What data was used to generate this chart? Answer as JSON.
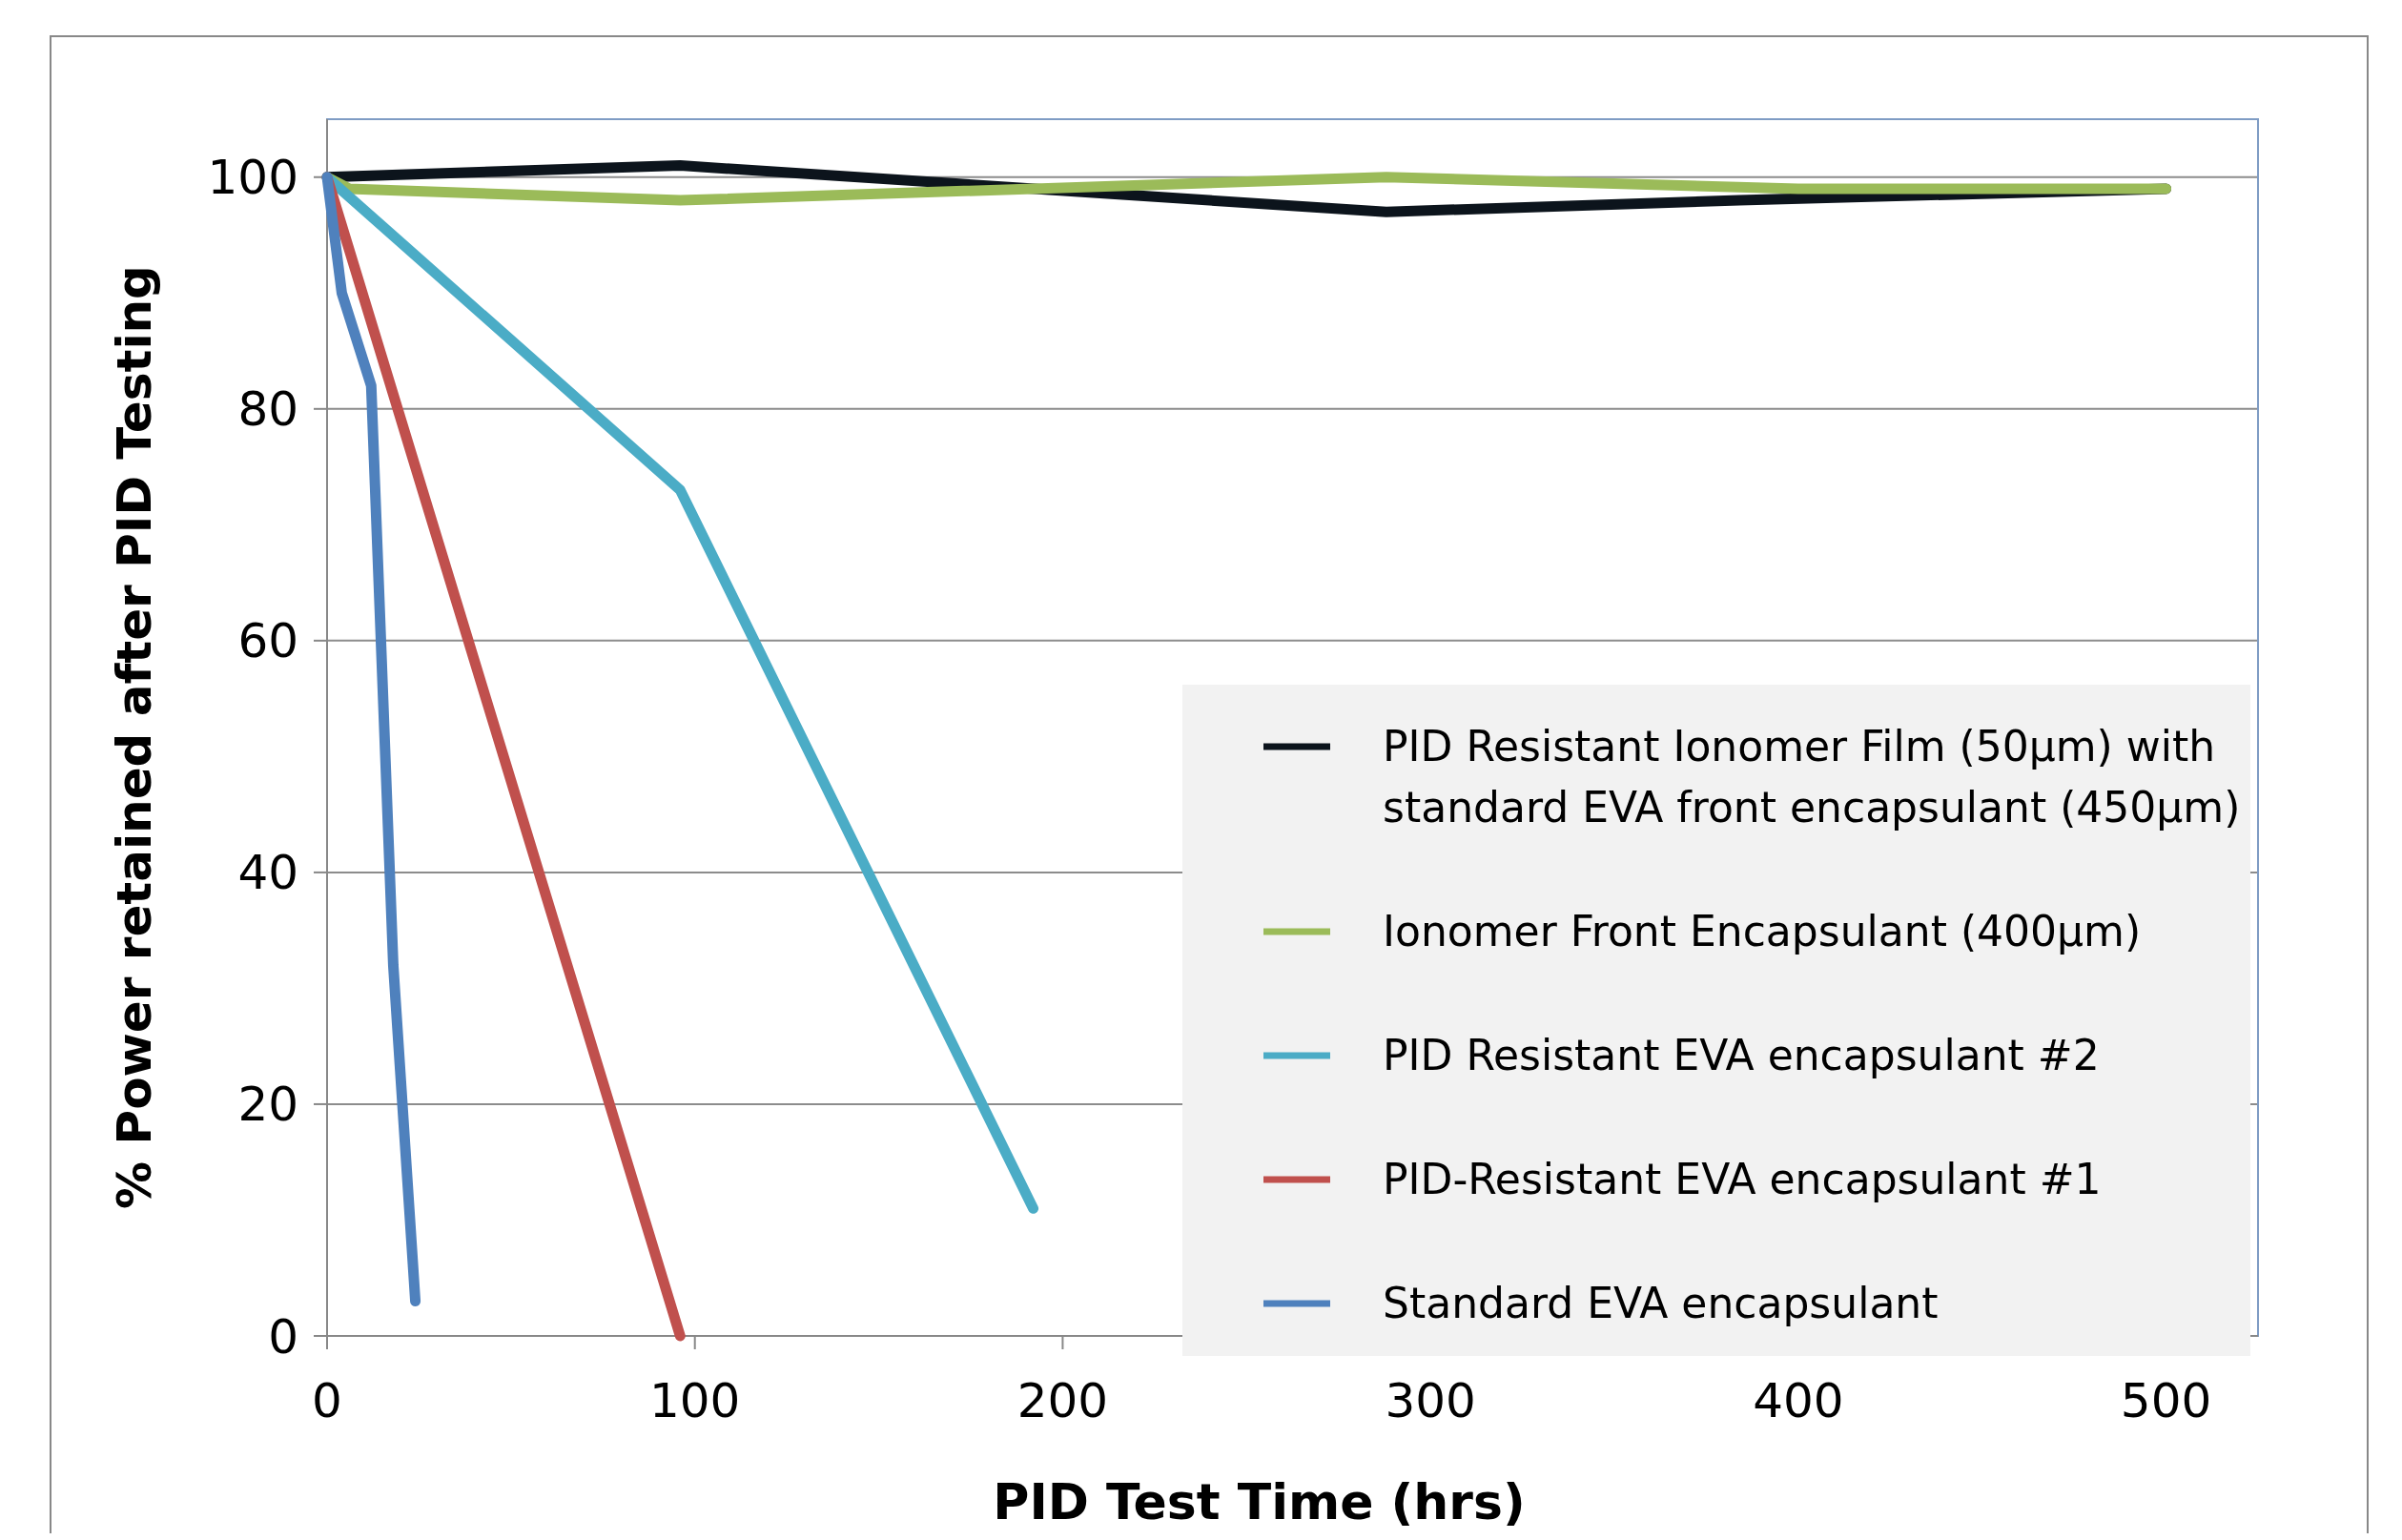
{
  "chart_data": {
    "type": "line",
    "xlabel": "PID Test Time (hrs)",
    "ylabel": "% Power retained after PID Testing",
    "xlim": [
      0,
      525
    ],
    "ylim": [
      0,
      105
    ],
    "xticks": [
      0,
      100,
      200,
      300,
      400,
      500
    ],
    "yticks": [
      0,
      20,
      40,
      60,
      80,
      100
    ],
    "grid": "y",
    "legend": "bottom right",
    "marker": "none",
    "line_style": "solid",
    "series": [
      {
        "name": "PID Resistant Ionomer Film (50µm) with standard EVA front encapsulant (450µm)",
        "color": "#0c141c",
        "x": [
          0,
          96,
          288,
          384,
          500
        ],
        "values": [
          100,
          101,
          97,
          98,
          99
        ]
      },
      {
        "name": "Ionomer Front Encapsulant (400µm)",
        "color": "#9bbb59",
        "x": [
          0,
          6,
          96,
          288,
          400,
          500
        ],
        "values": [
          100,
          99,
          98,
          100,
          99,
          99
        ]
      },
      {
        "name": "PID Resistant EVA encapsulant #2",
        "color": "#4bacc6",
        "x": [
          0,
          96,
          192
        ],
        "values": [
          100,
          73,
          11
        ]
      },
      {
        "name": "PID-Resistant EVA encapsulant #1",
        "color": "#c0504d",
        "x": [
          0,
          96
        ],
        "values": [
          100,
          0
        ]
      },
      {
        "name": "Standard EVA encapsulant",
        "color": "#4f81bd",
        "x": [
          0,
          4,
          12,
          18,
          24
        ],
        "values": [
          100,
          90,
          82,
          32,
          3
        ]
      }
    ]
  }
}
